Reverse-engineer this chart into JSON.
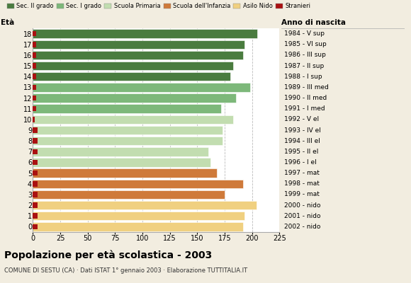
{
  "ages": [
    18,
    17,
    16,
    15,
    14,
    13,
    12,
    11,
    10,
    9,
    8,
    7,
    6,
    5,
    4,
    3,
    2,
    1,
    0
  ],
  "years": [
    "1984 - V sup",
    "1985 - VI sup",
    "1986 - III sup",
    "1987 - II sup",
    "1988 - I sup",
    "1989 - III med",
    "1990 - II med",
    "1991 - I med",
    "1992 - V el",
    "1993 - IV el",
    "1994 - III el",
    "1995 - II el",
    "1996 - I el",
    "1997 - mat",
    "1998 - mat",
    "1999 - mat",
    "2000 - nido",
    "2001 - nido",
    "2002 - nido"
  ],
  "values": [
    205,
    193,
    192,
    183,
    180,
    198,
    185,
    172,
    183,
    173,
    173,
    160,
    162,
    168,
    192,
    175,
    204,
    193,
    192
  ],
  "stranieri": [
    3,
    3,
    3,
    3,
    3,
    3,
    3,
    3,
    2,
    4,
    4,
    4,
    4,
    4,
    4,
    4,
    4,
    4,
    4
  ],
  "categories": [
    "Sec. II grado",
    "Sec. I grado",
    "Scuola Primaria",
    "Scuola dell'Infanzia",
    "Asilo Nido",
    "Stranieri"
  ],
  "bar_colors": {
    "18": "#4a7c3f",
    "17": "#4a7c3f",
    "16": "#4a7c3f",
    "15": "#4a7c3f",
    "14": "#4a7c3f",
    "13": "#7db87a",
    "12": "#7db87a",
    "11": "#7db87a",
    "10": "#c2ddb0",
    "9": "#c2ddb0",
    "8": "#c2ddb0",
    "7": "#c2ddb0",
    "6": "#c2ddb0",
    "5": "#cf7a3a",
    "4": "#cf7a3a",
    "3": "#cf7a3a",
    "2": "#f0d080",
    "1": "#f0d080",
    "0": "#f0d080"
  },
  "legend_colors": [
    "#4a7c3f",
    "#7db87a",
    "#c2ddb0",
    "#cf7a3a",
    "#f0d080",
    "#aa1111"
  ],
  "stranieri_color": "#aa1111",
  "title": "Popolazione per età scolastica - 2003",
  "subtitle": "COMUNE DI SESTU (CA) · Dati ISTAT 1° gennaio 2003 · Elaborazione TUTTITALIA.IT",
  "xlabel_eta": "Età",
  "xlabel_anno": "Anno di nascita",
  "xlim": [
    0,
    225
  ],
  "xticks": [
    0,
    25,
    50,
    75,
    100,
    125,
    150,
    175,
    200,
    225
  ],
  "background_color": "#f2ede0",
  "bar_background": "#ffffff",
  "grid_color": "#bbbbbb"
}
